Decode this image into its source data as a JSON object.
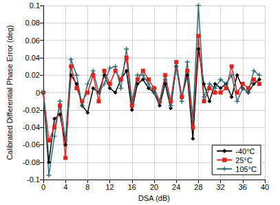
{
  "chart_data": {
    "type": "line",
    "x_label": "DSA (dB)",
    "y_label": "Calibrated Differential Phase Error (deg)",
    "x": [
      0,
      1,
      2,
      3,
      4,
      5,
      6,
      7,
      8,
      9,
      10,
      11,
      12,
      13,
      14,
      15,
      16,
      17,
      18,
      19,
      20,
      21,
      22,
      23,
      24,
      25,
      26,
      27,
      28,
      29,
      30,
      31,
      32,
      33,
      34,
      35,
      36,
      37,
      38,
      39
    ],
    "xlim": [
      0,
      40
    ],
    "xticks": [
      0,
      4,
      8,
      12,
      16,
      20,
      24,
      28,
      32,
      36,
      40
    ],
    "ylim": [
      -0.1,
      0.1
    ],
    "yticks": [
      -0.1,
      -0.08,
      -0.06,
      -0.04,
      -0.02,
      0,
      0.02,
      0.04,
      0.06,
      0.08,
      0.1
    ],
    "grid": true,
    "legend": "lower right",
    "series": [
      {
        "name": "-40°C",
        "color": "#000000",
        "marker": "diamond",
        "line_style": "solid",
        "values": [
          0,
          -0.08,
          -0.03,
          -0.025,
          -0.06,
          0.02,
          0.01,
          -0.015,
          -0.023,
          0.005,
          0,
          0.02,
          0.005,
          0,
          0.015,
          0.025,
          -0.02,
          0.01,
          0.015,
          0.005,
          0,
          -0.015,
          0.01,
          -0.018,
          0.03,
          -0.005,
          0.02,
          -0.053,
          0.05,
          0.01,
          -0.01,
          0.01,
          0.005,
          0.01,
          -0.005,
          0.02,
          0.005,
          0,
          0.01,
          0.015
        ]
      },
      {
        "name": "25°C",
        "color": "#e3231b",
        "marker": "square",
        "line_style": "solid",
        "values": [
          0,
          -0.055,
          -0.04,
          -0.015,
          -0.075,
          0.03,
          0.005,
          -0.01,
          0,
          0.02,
          -0.01,
          0.025,
          0.01,
          0.025,
          0.015,
          0.04,
          -0.015,
          0.015,
          0.025,
          0.015,
          0.005,
          -0.01,
          0.02,
          -0.01,
          0.035,
          -0.005,
          0.025,
          -0.04,
          0.065,
          -0.01,
          0.005,
          0,
          0,
          0.005,
          0.03,
          0,
          0.01,
          0.005,
          0.015,
          0.01
        ]
      },
      {
        "name": "105°C",
        "color": "#2e6b78",
        "marker": "plus",
        "line_style": "solid",
        "values": [
          0,
          -0.095,
          -0.05,
          -0.01,
          -0.055,
          0.038,
          0.02,
          -0.015,
          0.01,
          0.025,
          0,
          0.01,
          0.028,
          0.03,
          0.005,
          0.05,
          -0.01,
          0.02,
          0.02,
          0.01,
          0,
          -0.01,
          0.015,
          -0.015,
          0.03,
          -0.01,
          0.035,
          -0.03,
          0.1,
          -0.005,
          0.01,
          0.005,
          0.015,
          0.01,
          0.02,
          -0.01,
          0.005,
          0,
          0.025,
          0.02
        ]
      }
    ]
  }
}
